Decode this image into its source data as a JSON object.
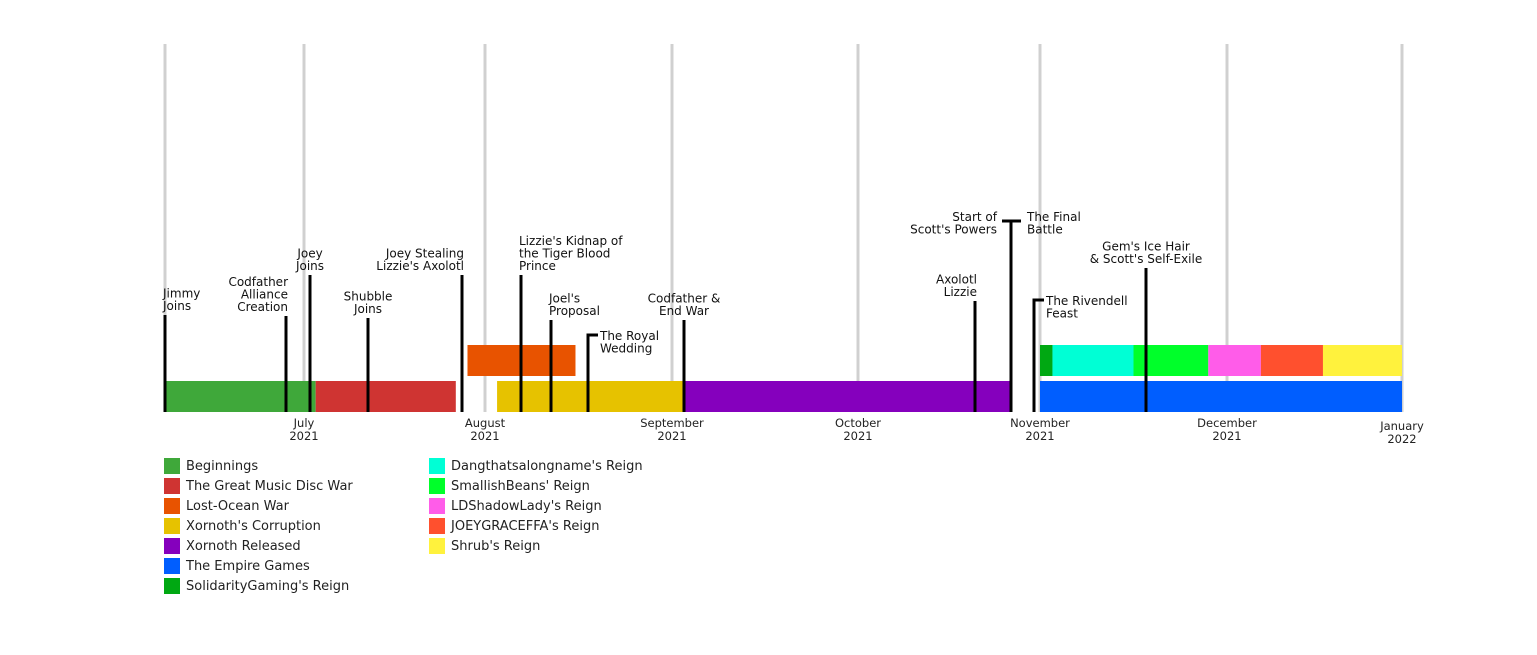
{
  "chart_data": {
    "type": "timeline",
    "x_range": [
      "2021-06-08",
      "2022-01-01"
    ],
    "grid": true,
    "legend_placement": "bottom-left",
    "ticks": [
      {
        "date": "2021-07-01",
        "month": "July",
        "year": "2021"
      },
      {
        "date": "2021-08-01",
        "month": "August",
        "year": "2021"
      },
      {
        "date": "2021-09-01",
        "month": "September",
        "year": "2021"
      },
      {
        "date": "2021-10-01",
        "month": "October",
        "year": "2021"
      },
      {
        "date": "2021-11-01",
        "month": "November",
        "year": "2021"
      },
      {
        "date": "2021-12-01",
        "month": "December",
        "year": "2021"
      },
      {
        "date": "2022-01-01",
        "month": "January",
        "year": "2022"
      }
    ],
    "periods": [
      {
        "name": "Beginnings",
        "start": "2021-06-08",
        "end": "2021-07-03",
        "row": 1,
        "color": "#3fa83a"
      },
      {
        "name": "The Great Music Disc War",
        "start": "2021-07-03",
        "end": "2021-07-27",
        "row": 1,
        "color": "#cf3432"
      },
      {
        "name": "Lost-Ocean War",
        "start": "2021-07-29",
        "end": "2021-08-16",
        "row": 2,
        "color": "#e85300"
      },
      {
        "name": "Xornoth's Corruption",
        "start": "2021-08-03",
        "end": "2021-09-03",
        "row": 1,
        "color": "#e6c200"
      },
      {
        "name": "Xornoth Released",
        "start": "2021-09-03",
        "end": "2021-10-27",
        "row": 1,
        "color": "#8500bd"
      },
      {
        "name": "The Empire Games",
        "start": "2021-11-01",
        "end": "2022-01-01",
        "row": 1,
        "color": "#005eff"
      },
      {
        "name": "SolidarityGaming's Reign",
        "start": "2021-11-01",
        "end": "2021-11-03",
        "row": 2,
        "color": "#00a812"
      },
      {
        "name": "Dangthatsalongname's Reign",
        "start": "2021-11-03",
        "end": "2021-11-16",
        "row": 2,
        "color": "#00ffd5"
      },
      {
        "name": "SmallishBeans' Reign",
        "start": "2021-11-16",
        "end": "2021-11-28",
        "row": 2,
        "color": "#00ff2a"
      },
      {
        "name": "LDShadowLady's Reign",
        "start": "2021-11-28",
        "end": "2021-12-07",
        "row": 2,
        "color": "#ff5ce9"
      },
      {
        "name": "JOEYGRACEFFA's Reign",
        "start": "2021-12-07",
        "end": "2021-12-18",
        "row": 2,
        "color": "#ff502e"
      },
      {
        "name": "Shrub's Reign",
        "start": "2021-12-18",
        "end": "2022-01-01",
        "row": 2,
        "color": "#fff23d"
      }
    ],
    "events": [
      {
        "date": "2021-06-08",
        "label": [
          "Jimmy",
          "Joins"
        ]
      },
      {
        "date": "2021-06-28",
        "label": [
          "Codfather",
          "Alliance",
          "Creation"
        ]
      },
      {
        "date": "2021-07-02",
        "label": [
          "Joey",
          "Joins"
        ]
      },
      {
        "date": "2021-07-12",
        "label": [
          "Shubble",
          "Joins"
        ]
      },
      {
        "date": "2021-07-28",
        "label": [
          "Joey Stealing",
          "Lizzie's Axolotl"
        ]
      },
      {
        "date": "2021-08-07",
        "label": [
          "Lizzie's Kidnap of",
          "the Tiger Blood",
          "Prince"
        ]
      },
      {
        "date": "2021-08-12",
        "label": [
          "Joel's",
          "Proposal"
        ]
      },
      {
        "date": "2021-08-18",
        "label": [
          "The Royal",
          "Wedding"
        ]
      },
      {
        "date": "2021-09-03",
        "label": [
          "Codfather &",
          "End War"
        ]
      },
      {
        "date": "2021-10-21",
        "label": [
          "Axolotl",
          "Lizzie"
        ]
      },
      {
        "date": "2021-10-27",
        "label": [
          "Start of",
          "Scott's Powers"
        ],
        "label2": [
          "The Final",
          "Battle"
        ]
      },
      {
        "date": "2021-10-31",
        "label": [
          "The Rivendell",
          "Feast"
        ]
      },
      {
        "date": "2021-11-18",
        "label": [
          "Gem's Ice Hair",
          "& Scott's Self-Exile"
        ]
      }
    ]
  }
}
